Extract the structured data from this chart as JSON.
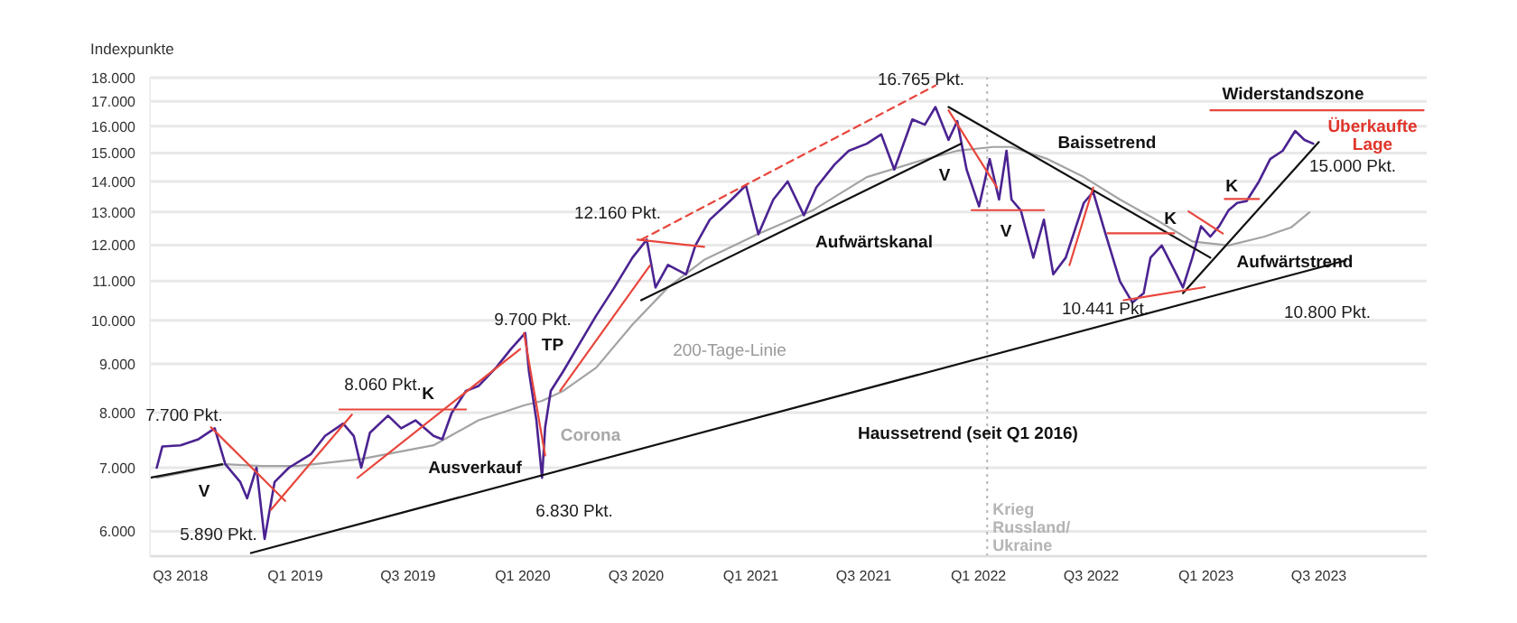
{
  "chart_data": {
    "type": "line",
    "ylabel": "Indexpunkte",
    "log": "y",
    "grid": "y",
    "xlim": [
      "2018-05-13",
      "2023-12-21"
    ],
    "xticks": [
      {
        "value": "2018-07-01",
        "label": "Q3 2018"
      },
      {
        "value": "2019-01-01",
        "label": "Q1 2019"
      },
      {
        "value": "2019-07-01",
        "label": "Q3 2019"
      },
      {
        "value": "2020-01-01",
        "label": "Q1 2020"
      },
      {
        "value": "2020-07-01",
        "label": "Q3 2020"
      },
      {
        "value": "2021-01-01",
        "label": "Q1 2021"
      },
      {
        "value": "2021-07-01",
        "label": "Q3 2021"
      },
      {
        "value": "2022-01-01",
        "label": "Q1 2022"
      },
      {
        "value": "2022-07-01",
        "label": "Q3 2022"
      },
      {
        "value": "2023-01-01",
        "label": "Q1 2023"
      },
      {
        "value": "2023-07-01",
        "label": "Q3 2023"
      }
    ],
    "ylim": [
      5650,
      18000
    ],
    "yticks": [
      {
        "value": 6000,
        "label": "6.000"
      },
      {
        "value": 7000,
        "label": "7.000"
      },
      {
        "value": 8000,
        "label": "8.000"
      },
      {
        "value": 9000,
        "label": "9.000"
      },
      {
        "value": 10000,
        "label": "10.000"
      },
      {
        "value": 11000,
        "label": "11.000"
      },
      {
        "value": 12000,
        "label": "12.000"
      },
      {
        "value": 13000,
        "label": "13.000"
      },
      {
        "value": 14000,
        "label": "14.000"
      },
      {
        "value": 15000,
        "label": "15.000"
      },
      {
        "value": 16000,
        "label": "16.000"
      },
      {
        "value": 17000,
        "label": "17.000"
      },
      {
        "value": 18000,
        "label": "18.000"
      }
    ],
    "series": [
      {
        "color": "#a3a3a3",
        "x": [
          "2018-05-24",
          "2018-09-11",
          "2018-11-08",
          "2019-01-05",
          "2019-04-17",
          "2019-08-11",
          "2019-10-22",
          "2020-01-03",
          "2020-02-01",
          "2020-03-06",
          "2020-04-28",
          "2020-06-25",
          "2020-08-21",
          "2020-10-18",
          "2021-01-13",
          "2021-04-10",
          "2021-07-06",
          "2021-10-01",
          "2021-11-28",
          "2022-01-25",
          "2022-02-23",
          "2022-04-22",
          "2022-06-19",
          "2022-08-16",
          "2022-10-13",
          "2022-12-10",
          "2023-02-06",
          "2023-04-05",
          "2023-05-18",
          "2023-06-16"
        ],
        "values": [
          6830,
          7060,
          7030,
          7030,
          7150,
          7390,
          7850,
          8140,
          8230,
          8430,
          8920,
          9900,
          10830,
          11580,
          12330,
          13050,
          14150,
          14730,
          15080,
          15220,
          15220,
          14780,
          14150,
          13400,
          12760,
          12110,
          11990,
          12250,
          12530,
          12990
        ]
      },
      {
        "color": "#4b2391",
        "x": [
          "2018-05-24",
          "2018-06-02",
          "2018-07-01",
          "2018-07-30",
          "2018-08-25",
          "2018-09-11",
          "2018-10-05",
          "2018-10-16",
          "2018-10-31",
          "2018-11-13",
          "2018-11-29",
          "2018-12-22",
          "2019-01-26",
          "2019-02-18",
          "2019-03-19",
          "2019-04-05",
          "2019-04-17",
          "2019-05-01",
          "2019-05-30",
          "2019-06-20",
          "2019-07-13",
          "2019-08-11",
          "2019-08-25",
          "2019-09-09",
          "2019-10-02",
          "2019-10-22",
          "2019-11-20",
          "2019-12-13",
          "2020-01-05",
          "2020-01-11",
          "2020-01-23",
          "2020-02-01",
          "2020-02-06",
          "2020-02-15",
          "2020-03-06",
          "2020-03-30",
          "2020-04-28",
          "2020-05-27",
          "2020-06-25",
          "2020-07-18",
          "2020-08-01",
          "2020-08-21",
          "2020-09-05",
          "2020-09-19",
          "2020-10-04",
          "2020-10-27",
          "2020-12-01",
          "2020-12-24",
          "2021-01-13",
          "2021-02-06",
          "2021-03-01",
          "2021-03-27",
          "2021-04-16",
          "2021-05-15",
          "2021-06-07",
          "2021-07-06",
          "2021-07-29",
          "2021-08-19",
          "2021-09-17",
          "2021-10-07",
          "2021-10-24",
          "2021-11-14",
          "2021-11-28",
          "2021-12-13",
          "2022-01-02",
          "2022-01-19",
          "2022-02-03",
          "2022-02-15",
          "2022-02-23",
          "2022-03-10",
          "2022-03-30",
          "2022-04-16",
          "2022-05-01",
          "2022-05-21",
          "2022-06-19",
          "2022-07-04",
          "2022-07-24",
          "2022-08-16",
          "2022-09-05",
          "2022-09-23",
          "2022-10-04",
          "2022-10-22",
          "2022-11-11",
          "2022-11-25",
          "2022-12-10",
          "2022-12-24",
          "2023-01-08",
          "2023-01-22",
          "2023-02-06",
          "2023-02-20",
          "2023-03-07",
          "2023-03-27",
          "2023-04-14",
          "2023-05-04",
          "2023-05-24",
          "2023-06-08",
          "2023-06-22"
        ],
        "values": [
          7000,
          7370,
          7390,
          7500,
          7700,
          7060,
          6760,
          6500,
          7000,
          5890,
          6760,
          7000,
          7230,
          7560,
          7790,
          7560,
          7000,
          7620,
          7940,
          7700,
          7850,
          7560,
          7500,
          7990,
          8430,
          8530,
          8930,
          9330,
          9700,
          8840,
          7850,
          6830,
          7720,
          8430,
          8840,
          9400,
          10120,
          10830,
          11640,
          12160,
          10830,
          11440,
          11300,
          11180,
          11990,
          12760,
          13400,
          13870,
          12320,
          13400,
          14000,
          12900,
          13800,
          14580,
          15080,
          15340,
          15690,
          14410,
          16270,
          16060,
          16765,
          15480,
          16200,
          14410,
          13180,
          14780,
          13400,
          15080,
          13400,
          13050,
          11640,
          12760,
          11180,
          11640,
          13290,
          13650,
          12320,
          10990,
          10441,
          10680,
          11640,
          11990,
          11300,
          10830,
          11640,
          12560,
          12250,
          12560,
          13050,
          13290,
          13350,
          14000,
          14780,
          15080,
          15820,
          15480,
          15340
        ]
      },
      {
        "color": "#111111",
        "x": [
          "2018-05-13",
          "2018-09-06"
        ],
        "values": [
          6830,
          7060
        ]
      },
      {
        "color": "#111111",
        "x": [
          "2018-10-22",
          "2023-08-13"
        ],
        "values": [
          5693,
          11560
        ]
      },
      {
        "color": "#111111",
        "x": [
          "2020-07-09",
          "2021-12-04"
        ],
        "values": [
          10500,
          15340
        ]
      },
      {
        "color": "#111111",
        "x": [
          "2021-11-14",
          "2023-01-08"
        ],
        "values": [
          16765,
          11640
        ]
      },
      {
        "color": "#111111",
        "x": [
          "2022-11-25",
          "2023-07-01"
        ],
        "values": [
          10680,
          15400
        ]
      },
      {
        "color": "#e8463c",
        "x": [
          "2018-08-19",
          "2018-12-16"
        ],
        "values": [
          7720,
          6460
        ]
      },
      {
        "color": "#e8463c",
        "x": [
          "2018-11-23",
          "2019-04-02"
        ],
        "values": [
          6320,
          7960
        ]
      },
      {
        "color": "#e8463c",
        "x": [
          "2019-03-13",
          "2019-10-02"
        ],
        "values": [
          8060,
          8060
        ]
      },
      {
        "color": "#e8463c",
        "x": [
          "2019-04-11",
          "2019-12-28"
        ],
        "values": [
          6830,
          9330
        ]
      },
      {
        "color": "#e8463c",
        "x": [
          "2020-01-03",
          "2020-02-06"
        ],
        "values": [
          9700,
          7210
        ]
      },
      {
        "color": "#e8463c",
        "x": [
          "2020-03-01",
          "2020-07-23"
        ],
        "values": [
          8430,
          11420
        ]
      },
      {
        "color": "#e8463c",
        "x": [
          "2020-07-03",
          "2020-10-18"
        ],
        "values": [
          12160,
          11950
        ]
      },
      {
        "color": "#e8463c",
        "line_style": "dashed",
        "x": [
          "2020-07-09",
          "2021-10-24"
        ],
        "values": [
          12160,
          17660
        ]
      },
      {
        "color": "#e8463c",
        "x": [
          "2021-11-14",
          "2022-01-31"
        ],
        "values": [
          16630,
          13790
        ]
      },
      {
        "color": "#e8463c",
        "x": [
          "2021-12-21",
          "2022-04-16"
        ],
        "values": [
          13060,
          13060
        ]
      },
      {
        "color": "#e8463c",
        "x": [
          "2022-05-27",
          "2022-07-04"
        ],
        "values": [
          11430,
          13790
        ]
      },
      {
        "color": "#e8463c",
        "x": [
          "2022-07-27",
          "2022-11-11"
        ],
        "values": [
          12350,
          12350
        ]
      },
      {
        "color": "#e8463c",
        "x": [
          "2022-08-22",
          "2022-12-30"
        ],
        "values": [
          10500,
          10840
        ]
      },
      {
        "color": "#e8463c",
        "x": [
          "2022-12-04",
          "2023-01-28"
        ],
        "values": [
          13020,
          12340
        ]
      },
      {
        "color": "#e8463c",
        "x": [
          "2023-01-31",
          "2023-03-27"
        ],
        "values": [
          13420,
          13420
        ]
      },
      {
        "color": "#e8463c",
        "x": [
          "2023-01-08",
          "2023-12-16"
        ],
        "values": [
          16630,
          16630
        ]
      }
    ],
    "ref_lines": [
      {
        "axis": "x",
        "value": "2022-01-15",
        "label": "Krieg Russland/ Ukraine",
        "color": "#b5b5b5",
        "line_style": "dotted"
      }
    ],
    "annotations": [
      "7.700 Pkt.",
      "V",
      "5.890 Pkt.",
      "8.060 Pkt.",
      "K",
      "Ausverkauf",
      "9.700 Pkt.",
      "TP",
      "Corona",
      "6.830 Pkt.",
      "200-Tage-Linie",
      "12.160 Pkt.",
      "Aufwärtskanal",
      "16.765 Pkt.",
      "V",
      "Baissetrend",
      "V",
      "K",
      "10.441 Pkt.",
      "K",
      "Aufwärtstrend",
      "Widerstandszone",
      "Überkaufte\nLage",
      "15.000 Pkt.",
      "Haussetrend (seit Q1 2016)",
      "10.800 Pkt."
    ]
  }
}
